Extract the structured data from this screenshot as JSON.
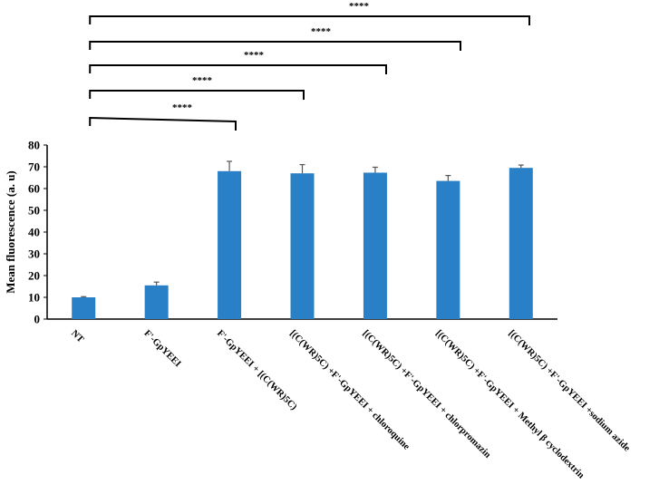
{
  "chart_data": {
    "type": "bar",
    "categories": [
      "NT",
      "F'-GpYEEI",
      "F'-GpYEEI + [(C(WR)5C)",
      "[(C(WR)5C) +F'-GpYEEI + chloroquine",
      "[(C(WR)5C) +F'-GpYEEI + chlorpromazin",
      "[(C(WR)5C) +F'-GpYEEI + Methyl β cyclodextrin",
      "[(C(WR)5C) +F'-GpYEEI +sodium azide"
    ],
    "values": [
      10,
      15.5,
      68,
      67,
      67.3,
      63.5,
      69.5
    ],
    "errors": [
      0.3,
      1.5,
      4.5,
      4,
      2.5,
      2.5,
      1.3
    ],
    "ylabel": "Mean fluorescence (a. u)",
    "ylim": [
      0,
      80
    ],
    "yticks": [
      0,
      10,
      20,
      30,
      40,
      50,
      60,
      70,
      80
    ],
    "grid": false,
    "bar_color": "#2980c6",
    "significance": [
      {
        "from": 0,
        "to": 1,
        "label": "****"
      },
      {
        "from": 0,
        "to": 2,
        "label": "****"
      },
      {
        "from": 0,
        "to": 3,
        "label": "****"
      },
      {
        "from": 0,
        "to": 4,
        "label": "****"
      },
      {
        "from": 0,
        "to": 5,
        "label": "****"
      }
    ]
  }
}
